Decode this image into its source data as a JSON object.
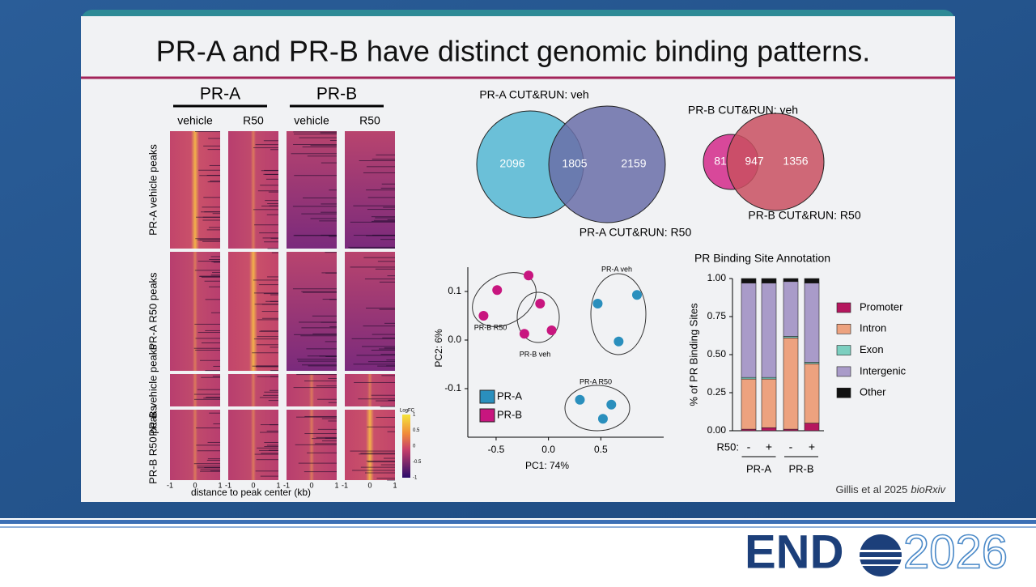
{
  "slide": {
    "title": "PR-A and PR-B have distinct genomic binding patterns.",
    "citation": "Gillis et al 2025",
    "citation_journal": "bioRxiv",
    "logo_left": "END",
    "logo_right": "2026"
  },
  "heatmap": {
    "groups": [
      "PR-A",
      "PR-B"
    ],
    "columns": [
      "vehicle",
      "R50",
      "vehicle",
      "R50"
    ],
    "rows": [
      "PR-A vehicle peaks",
      "PR-A R50 peaks",
      "PR-B vehicle peaks",
      "PR-B R50 peaks"
    ],
    "x_ticks": [
      -1,
      0,
      1
    ],
    "x_label": "distance to peak center (kb)",
    "colorbar_title": "LogFC",
    "colorbar_ticks": [
      1,
      0.5,
      0,
      -0.5,
      -1
    ]
  },
  "venn": [
    {
      "title": "PR-A CUT&RUN: veh",
      "label_b": "PR-A CUT&RUN: R50",
      "values": [
        2096,
        1805,
        2159
      ]
    },
    {
      "title": "PR-B CUT&RUN: veh",
      "label_b": "PR-B CUT&RUN: R50",
      "values": [
        81,
        947,
        1356
      ]
    }
  ],
  "chart_data": [
    {
      "type": "scatter",
      "xlabel": "PC1: 74%",
      "ylabel": "PC2: 6%",
      "xlim": [
        -0.77,
        1.1
      ],
      "ylim": [
        -0.2,
        0.15
      ],
      "xticks": [
        -0.5,
        {
          "value": 0,
          "label": "0.0"
        },
        0.5
      ],
      "yticks": [
        -0.1,
        {
          "value": 0,
          "label": "0.0"
        },
        0.1
      ],
      "series": [
        {
          "name": "PR-A",
          "color": "#2a8fbd",
          "x": [
            0.47,
            0.845,
            0.67,
            0.3,
            0.6,
            0.52
          ],
          "values": [
            0.075,
            0.093,
            -0.003,
            -0.123,
            -0.133,
            -0.162
          ]
        },
        {
          "name": "PR-B",
          "color": "#c8167f",
          "x": [
            -0.19,
            -0.49,
            -0.62,
            -0.08,
            0.03,
            -0.23
          ],
          "values": [
            0.133,
            0.103,
            0.05,
            0.075,
            0.02,
            0.013
          ]
        }
      ],
      "annotations": [
        "PR-A veh",
        "PR-A R50",
        "PR-B R50",
        "PR-B veh"
      ]
    },
    {
      "type": "stacked_bar",
      "title": "PR Binding Site Annotation",
      "ylabel": "% of PR Binding Sites",
      "category_axis_label": "R50:",
      "categories": [
        "-",
        "+",
        "-",
        "+"
      ],
      "groups": [
        "PR-A",
        "PR-B"
      ],
      "ylim": [
        0,
        1
      ],
      "yticks": [
        {
          "value": 0,
          "label": "0.00"
        },
        {
          "value": 0.25,
          "label": "0.25"
        },
        {
          "value": 0.5,
          "label": "0.50"
        },
        {
          "value": 0.75,
          "label": "0.75"
        },
        {
          "value": 1,
          "label": "1.00"
        }
      ],
      "series": [
        {
          "name": "Promoter",
          "color": "#b5175e",
          "values": [
            0.01,
            0.02,
            0.01,
            0.05
          ]
        },
        {
          "name": "Intron",
          "color": "#eda27f",
          "values": [
            0.33,
            0.32,
            0.6,
            0.39
          ]
        },
        {
          "name": "Exon",
          "color": "#7ccfc0",
          "values": [
            0.01,
            0.01,
            0.01,
            0.01
          ]
        },
        {
          "name": "Intergenic",
          "color": "#a99bc9",
          "values": [
            0.62,
            0.62,
            0.36,
            0.52
          ]
        },
        {
          "name": "Other",
          "color": "#111111",
          "values": [
            0.03,
            0.03,
            0.02,
            0.03
          ]
        }
      ]
    }
  ]
}
